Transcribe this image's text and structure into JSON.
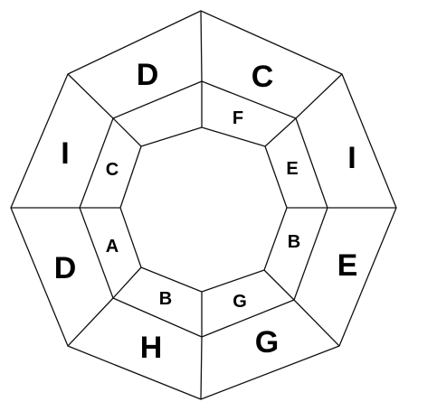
{
  "outer_ring": [
    "D",
    "C",
    "I",
    "E",
    "G",
    "H",
    "D",
    "I"
  ],
  "inner_ring": [
    "F",
    "E",
    "B",
    "G",
    "B",
    "A",
    "C"
  ]
}
